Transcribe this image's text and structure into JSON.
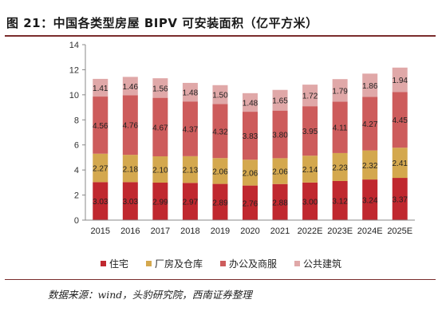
{
  "title": "图 21：中国各类型房屋 BIPV 可安装面积（亿平方米）",
  "source": "数据来源：wind，头豹研究院，西南证券整理",
  "colors": {
    "residential": "#c0282f",
    "factory": "#d4a84e",
    "office": "#cd5c5c",
    "public": "#e0a8a8"
  },
  "chart_data": {
    "type": "bar",
    "stacked": true,
    "categories": [
      "2015",
      "2016",
      "2017",
      "2018",
      "2019",
      "2020",
      "2021",
      "2022E",
      "2023E",
      "2024E",
      "2025E"
    ],
    "series": [
      {
        "name": "住宅",
        "key": "residential",
        "values": [
          3.03,
          3.03,
          2.99,
          2.97,
          2.89,
          2.76,
          2.88,
          3.0,
          3.12,
          3.24,
          3.37
        ]
      },
      {
        "name": "厂房及仓库",
        "key": "factory",
        "values": [
          2.27,
          2.18,
          2.1,
          2.13,
          2.06,
          2.06,
          2.06,
          2.14,
          2.23,
          2.32,
          2.41
        ]
      },
      {
        "name": "办公及商服",
        "key": "office",
        "values": [
          4.56,
          4.76,
          4.67,
          4.37,
          4.32,
          3.83,
          3.8,
          3.95,
          4.11,
          4.27,
          4.45
        ]
      },
      {
        "name": "公共建筑",
        "key": "public",
        "values": [
          1.41,
          1.46,
          1.56,
          1.48,
          1.5,
          1.48,
          1.65,
          1.72,
          1.79,
          1.86,
          1.94
        ]
      }
    ],
    "ylim": [
      0,
      14
    ],
    "yticks": [
      0,
      2,
      4,
      6,
      8,
      10,
      12,
      14
    ],
    "grid": false,
    "legend_position": "bottom",
    "xlabel": "",
    "ylabel": ""
  }
}
